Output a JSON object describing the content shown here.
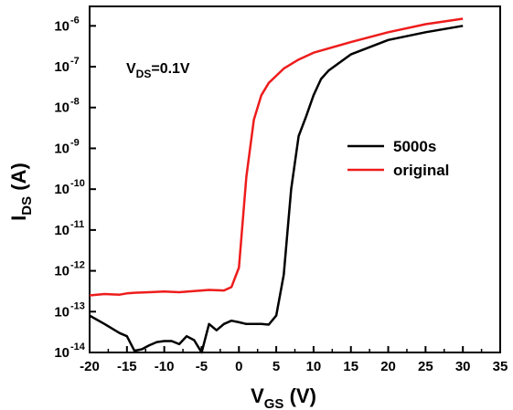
{
  "chart_data": {
    "type": "line",
    "title": "",
    "xlabel": {
      "main": "V",
      "sub": "GS",
      "unit": " (V)"
    },
    "ylabel": {
      "main": "I",
      "sub": "DS",
      "unit": " (A)"
    },
    "xlim": [
      -20,
      35
    ],
    "ylim": [
      1e-14,
      3e-06
    ],
    "yscale": "log",
    "xticks": [
      -20,
      -15,
      -10,
      -5,
      0,
      5,
      10,
      15,
      20,
      25,
      30,
      35
    ],
    "ytick_exponents": [
      -14,
      -13,
      -12,
      -11,
      -10,
      -9,
      -8,
      -7,
      -6
    ],
    "ytick_base": "10",
    "annotation": {
      "main": "V",
      "sub": "DS",
      "rest": "=0.1V"
    },
    "legend": {
      "position": "center-right"
    },
    "series": [
      {
        "name": "5000s",
        "color": "#000000",
        "x": [
          -20,
          -18,
          -16,
          -15,
          -14,
          -13,
          -12,
          -11,
          -10,
          -9,
          -8,
          -7,
          -6,
          -5,
          -4,
          -3,
          -2,
          -1,
          0,
          1,
          2,
          3,
          4,
          5,
          6,
          7,
          8,
          9,
          10,
          11,
          12,
          15,
          20,
          25,
          30
        ],
        "y": [
          8e-14,
          5e-14,
          3e-14,
          2.5e-14,
          1.1e-14,
          1.2e-14,
          1.5e-14,
          1.8e-14,
          1.9e-14,
          1.9e-14,
          1.6e-14,
          2.5e-14,
          2e-14,
          1e-14,
          5e-14,
          3.5e-14,
          5e-14,
          6e-14,
          5.5e-14,
          5e-14,
          5e-14,
          5e-14,
          4.8e-14,
          8e-14,
          8e-13,
          1e-10,
          2e-09,
          6e-09,
          2e-08,
          5e-08,
          8e-08,
          2e-07,
          4.5e-07,
          7e-07,
          1e-06
        ]
      },
      {
        "name": "original",
        "color": "#ee1c1c",
        "x": [
          -20,
          -18,
          -16,
          -15,
          -14,
          -12,
          -10,
          -8,
          -6,
          -4,
          -2,
          -1,
          0,
          1,
          2,
          3,
          4,
          5,
          6,
          8,
          10,
          15,
          20,
          25,
          30
        ],
        "y": [
          2.5e-13,
          2.7e-13,
          2.6e-13,
          2.8e-13,
          2.9e-13,
          3e-13,
          3.1e-13,
          3e-13,
          3.2e-13,
          3.4e-13,
          3.3e-13,
          4e-13,
          1.2e-12,
          2e-10,
          5e-09,
          2e-08,
          4e-08,
          6e-08,
          9e-08,
          1.5e-07,
          2.2e-07,
          4e-07,
          7e-07,
          1.1e-06,
          1.5e-06
        ]
      }
    ]
  }
}
